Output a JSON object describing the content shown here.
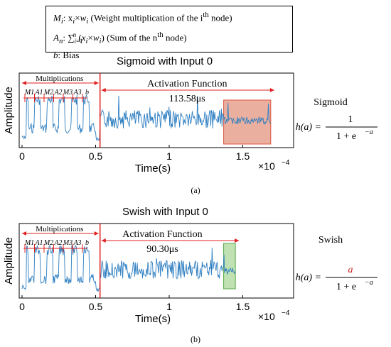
{
  "legend": {
    "line1_sym": "M",
    "line1_sub": "i",
    "line1_expr": ": x",
    "line1_tail": " (Weight multiplication of the i",
    "line1_sup": "th",
    "line1_end": " node)",
    "line2_sym": "A",
    "line2_sub": "n",
    "line2_tail": " (Sum of the n",
    "line2_sup": "th",
    "line2_end": " node)",
    "line3_sym": "b",
    "line3_tail": ": Bias"
  },
  "panels": [
    {
      "title": "Sigmoid with Input 0",
      "caption": "(a)",
      "ylabel": "Amplitude",
      "xlabel": "Time(s)",
      "x_multiplier": "×10",
      "x_exponent": "−4",
      "xticks": [
        "0",
        "0.5",
        "1",
        "1.5"
      ],
      "mult_label": "Multiplications",
      "mult_markers": [
        "M1",
        "A1",
        "M2",
        "A2",
        "M3",
        "A3",
        "b"
      ],
      "activation_label": "Activation Function",
      "duration": "113.58μs",
      "func_name": "Sigmoid",
      "func_lhs": "h(a) =",
      "func_num": "1",
      "func_den": "1 + e",
      "func_den_exp": "−a",
      "highlight_color": "#e8a28f",
      "highlight_x": [
        1.37,
        1.69
      ]
    },
    {
      "title": "Swish with Input 0",
      "caption": "(b)",
      "ylabel": "Amplitude",
      "xlabel": "Time(s)",
      "x_multiplier": "×10",
      "x_exponent": "−4",
      "xticks": [
        "0",
        "0.5",
        "1",
        "1.5"
      ],
      "mult_label": "Multiplications",
      "mult_markers": [
        "M1",
        "A1",
        "M2",
        "A2",
        "M3",
        "A3",
        "b"
      ],
      "activation_label": "Activation Function",
      "duration": "90.30μs",
      "func_name": "Swish",
      "func_lhs": "h(a) =",
      "func_num": "a",
      "func_den": "1 + e",
      "func_den_exp": "−a",
      "highlight_color": "#b6dca5",
      "highlight_x": [
        1.37,
        1.45
      ]
    }
  ],
  "colors": {
    "signal": "#2f7fc1",
    "annotation": "#e02020",
    "numerator_swish": "#d21f1f"
  }
}
